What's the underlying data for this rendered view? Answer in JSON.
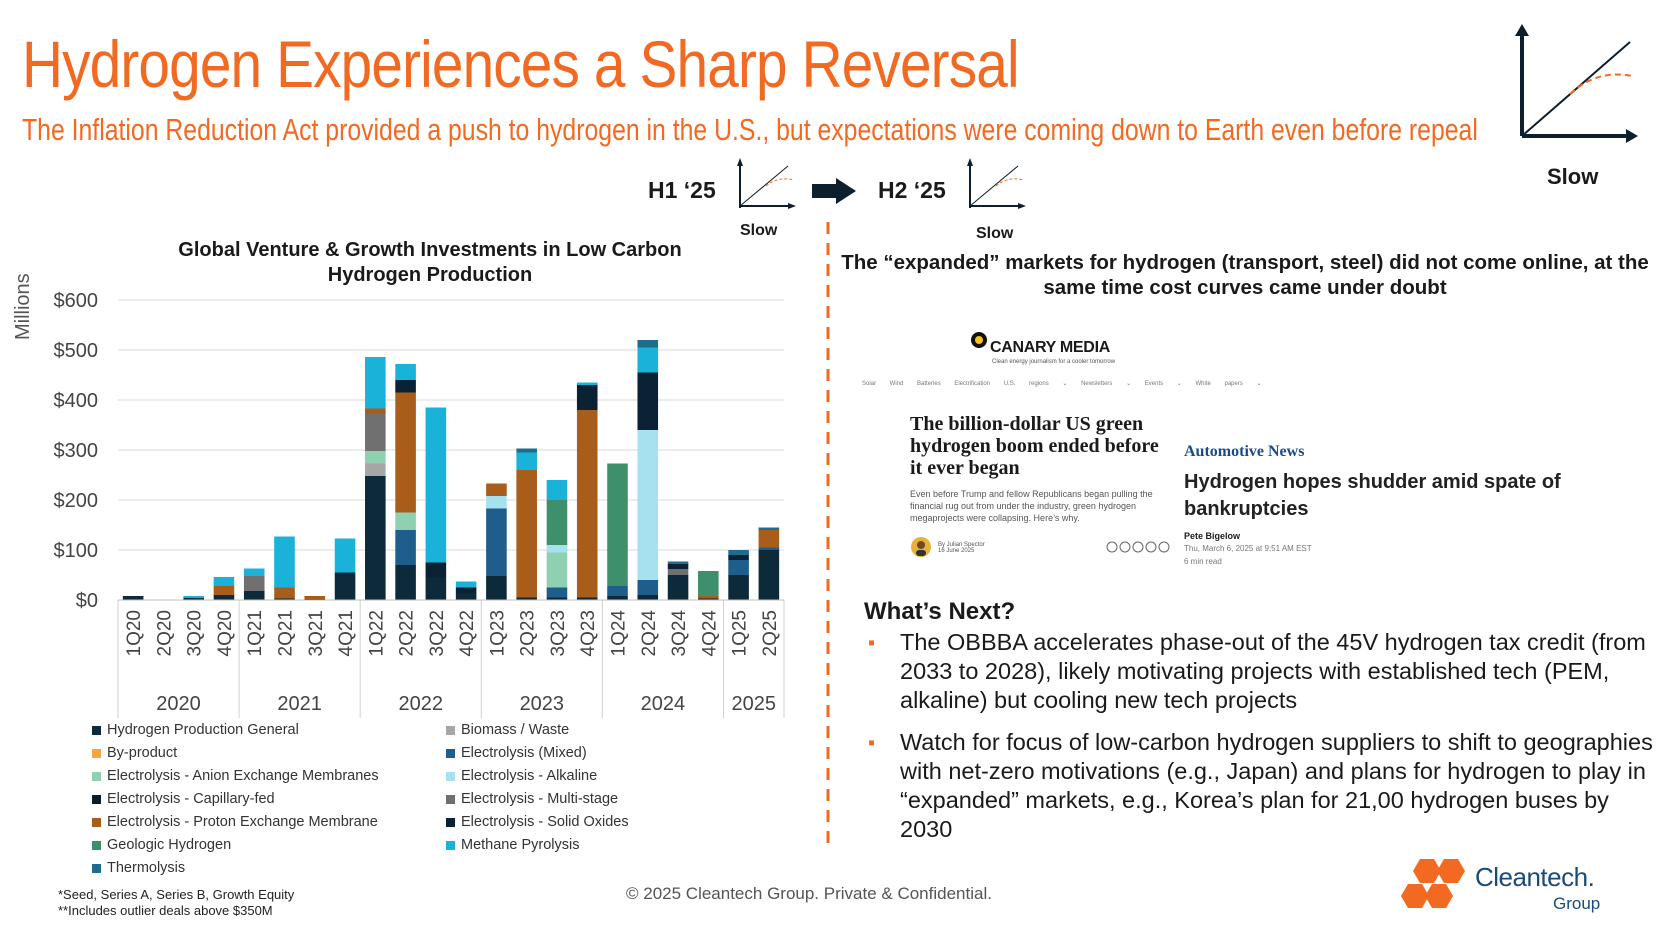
{
  "title": "Hydrogen Experiences a Sharp Reversal",
  "subtitle": "The Inflation Reduction Act provided a push to hydrogen in the U.S., but expectations were coming down to Earth even before repeal",
  "outlook": {
    "h1_label": "H1 ‘25",
    "h2_label": "H2 ‘25",
    "h1_status": "Slow",
    "h2_status": "Slow",
    "overall_status": "Slow"
  },
  "colors": {
    "accent": "#f26a21",
    "text": "#1a1a1a",
    "logo": "#1a4b7a"
  },
  "chart_data": {
    "type": "bar",
    "stacked": true,
    "title": "Global Venture & Growth Investments in Low Carbon Hydrogen Production",
    "ylabel": "Millions",
    "xlabel": "",
    "ylim": [
      0,
      600
    ],
    "yticks": [
      "$0",
      "$100",
      "$200",
      "$300",
      "$400",
      "$500",
      "$600"
    ],
    "grid": true,
    "legend_position": "bottom",
    "categories": [
      "1Q20",
      "2Q20",
      "3Q20",
      "4Q20",
      "1Q21",
      "2Q21",
      "3Q21",
      "4Q21",
      "1Q22",
      "2Q22",
      "3Q22",
      "4Q22",
      "1Q23",
      "2Q23",
      "3Q23",
      "4Q23",
      "1Q24",
      "2Q24",
      "3Q24",
      "4Q24",
      "1Q25",
      "2Q25"
    ],
    "years": [
      {
        "label": "2020",
        "count": 4
      },
      {
        "label": "2021",
        "count": 4
      },
      {
        "label": "2022",
        "count": 4
      },
      {
        "label": "2023",
        "count": 4
      },
      {
        "label": "2024",
        "count": 4
      },
      {
        "label": "2025",
        "count": 2
      }
    ],
    "series": [
      {
        "name": "Hydrogen Production General",
        "color": "#0d2a3a",
        "values": [
          8,
          0,
          4,
          10,
          18,
          3,
          2,
          55,
          248,
          70,
          45,
          15,
          48,
          5,
          5,
          5,
          8,
          10,
          50,
          3,
          50,
          100
        ]
      },
      {
        "name": "Biomass / Waste",
        "color": "#a6a6a6",
        "values": [
          0,
          0,
          0,
          0,
          0,
          0,
          0,
          0,
          25,
          0,
          0,
          0,
          0,
          0,
          0,
          0,
          0,
          0,
          0,
          0,
          0,
          0
        ]
      },
      {
        "name": "By-product",
        "color": "#f7a541",
        "values": [
          0,
          0,
          0,
          0,
          0,
          0,
          0,
          0,
          0,
          0,
          0,
          0,
          0,
          0,
          0,
          0,
          0,
          0,
          0,
          0,
          0,
          0
        ]
      },
      {
        "name": "Electrolysis (Mixed)",
        "color": "#1f5e8c",
        "values": [
          0,
          0,
          0,
          0,
          0,
          0,
          0,
          0,
          0,
          70,
          0,
          0,
          135,
          0,
          20,
          0,
          20,
          30,
          0,
          0,
          30,
          5
        ]
      },
      {
        "name": "Electrolysis - Anion Exchange Membranes",
        "color": "#8fd0b2",
        "values": [
          0,
          0,
          0,
          0,
          0,
          0,
          0,
          0,
          25,
          35,
          0,
          0,
          0,
          0,
          70,
          0,
          0,
          0,
          0,
          0,
          0,
          0
        ]
      },
      {
        "name": "Electrolysis - Alkaline",
        "color": "#a7e0ee",
        "values": [
          0,
          0,
          0,
          0,
          0,
          0,
          0,
          0,
          0,
          0,
          0,
          0,
          25,
          0,
          15,
          0,
          0,
          300,
          0,
          0,
          0,
          0
        ]
      },
      {
        "name": "Electrolysis - Capillary-fed",
        "color": "#0b1d2b",
        "values": [
          0,
          0,
          0,
          0,
          0,
          0,
          0,
          0,
          0,
          0,
          0,
          0,
          0,
          0,
          0,
          0,
          0,
          0,
          0,
          0,
          0,
          0
        ]
      },
      {
        "name": "Electrolysis - Multi-stage",
        "color": "#707070",
        "values": [
          0,
          0,
          0,
          0,
          30,
          0,
          0,
          0,
          75,
          0,
          0,
          0,
          0,
          0,
          0,
          0,
          0,
          0,
          12,
          0,
          0,
          0
        ]
      },
      {
        "name": "Electrolysis - Proton Exchange Membrane",
        "color": "#a85d1a",
        "values": [
          0,
          0,
          0,
          18,
          0,
          22,
          6,
          0,
          10,
          240,
          0,
          0,
          25,
          255,
          0,
          375,
          0,
          0,
          0,
          5,
          0,
          35
        ]
      },
      {
        "name": "Electrolysis - Solid Oxides",
        "color": "#0a2233",
        "values": [
          0,
          0,
          0,
          0,
          0,
          0,
          0,
          0,
          0,
          25,
          30,
          10,
          0,
          0,
          0,
          50,
          0,
          115,
          10,
          0,
          10,
          0
        ]
      },
      {
        "name": "Geologic Hydrogen",
        "color": "#3e8f6b",
        "values": [
          0,
          0,
          0,
          0,
          0,
          0,
          0,
          0,
          0,
          0,
          0,
          0,
          0,
          0,
          90,
          0,
          245,
          0,
          0,
          50,
          0,
          0
        ]
      },
      {
        "name": "Methane Pyrolysis",
        "color": "#1ab2d8",
        "values": [
          0,
          0,
          4,
          18,
          15,
          102,
          0,
          68,
          103,
          32,
          310,
          12,
          0,
          35,
          40,
          5,
          0,
          50,
          0,
          0,
          0,
          0
        ]
      },
      {
        "name": "Thermolysis",
        "color": "#1e6d8e",
        "values": [
          0,
          0,
          0,
          0,
          0,
          0,
          0,
          0,
          0,
          0,
          0,
          0,
          0,
          8,
          0,
          0,
          0,
          15,
          5,
          0,
          10,
          5
        ]
      }
    ]
  },
  "right_heading": "The “expanded” markets for hydrogen (transport, steel) did not come online, at the same time cost curves came under doubt",
  "articles": {
    "canary": {
      "brand": "CANARY MEDIA",
      "tagline": "Clean energy journalism for a cooler tomorrow",
      "nav": "Solar Wind Batteries Electrification U.S. regions ⌄ Newsletters ⌄ Events ⌄ White papers ⌄",
      "headline": "The billion-dollar US green hydrogen boom ended before it ever began",
      "dek": "Even before Trump and fellow Republicans began pulling the financial rug out from under the industry, green hydrogen megaprojects were collapsing. Here’s why.",
      "byline": "By Julian Spector",
      "date": "16 June 2025"
    },
    "automotive": {
      "publication": "Automotive News",
      "headline": "Hydrogen hopes shudder amid spate of bankruptcies",
      "author": "Pete Bigelow",
      "date": "Thu, March 6, 2025 at 9:51 AM EST",
      "read_time": "6 min read"
    }
  },
  "whats_next": {
    "heading": "What’s Next?",
    "bullets": [
      "The OBBBA accelerates phase-out of the 45V hydrogen tax credit (from 2033 to 2028), likely motivating projects with established tech (PEM, alkaline) but cooling new tech projects",
      "Watch for focus of low-carbon hydrogen suppliers to shift to geographies with net-zero motivations (e.g., Japan) and plans for hydrogen to play in “expanded” markets, e.g., Korea’s plan for 21,00 hydrogen buses by 2030"
    ]
  },
  "footnotes": [
    "*Seed, Series A, Series B, Growth Equity",
    "**Includes outlier deals above $350M"
  ],
  "copyright": "© 2025 Cleantech Group. Private & Confidential.",
  "logo": {
    "name": "Cleantech.",
    "sub": "Group"
  }
}
